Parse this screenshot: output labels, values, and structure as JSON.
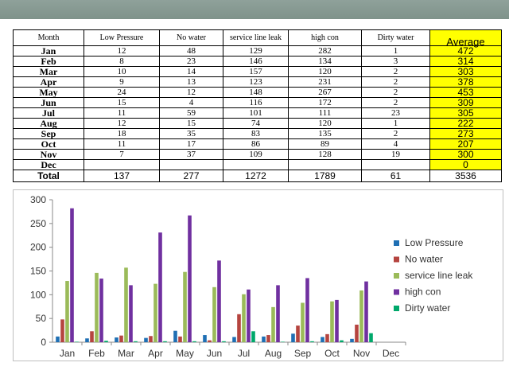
{
  "table": {
    "headers": [
      "Month",
      "Low Pressure",
      "No water",
      "service line leak",
      "high con",
      "Dirty water",
      "Average"
    ],
    "rows": [
      {
        "month": "Jan",
        "cells": [
          "12",
          "48",
          "129",
          "282",
          "1",
          "472"
        ]
      },
      {
        "month": "Feb",
        "cells": [
          "8",
          "23",
          "146",
          "134",
          "3",
          "314"
        ]
      },
      {
        "month": "Mar",
        "cells": [
          "10",
          "14",
          "157",
          "120",
          "2",
          "303"
        ]
      },
      {
        "month": "Apr",
        "cells": [
          "9",
          "13",
          "123",
          "231",
          "2",
          "378"
        ]
      },
      {
        "month": "May",
        "cells": [
          "24",
          "12",
          "148",
          "267",
          "2",
          "453"
        ]
      },
      {
        "month": "Jun",
        "cells": [
          "15",
          "4",
          "116",
          "172",
          "2",
          "309"
        ]
      },
      {
        "month": "Jul",
        "cells": [
          "11",
          "59",
          "101",
          "111",
          "23",
          "305"
        ]
      },
      {
        "month": "Aug",
        "cells": [
          "12",
          "15",
          "74",
          "120",
          "1",
          "222"
        ]
      },
      {
        "month": "Sep",
        "cells": [
          "18",
          "35",
          "83",
          "135",
          "2",
          "273"
        ]
      },
      {
        "month": "Oct",
        "cells": [
          "11",
          "17",
          "86",
          "89",
          "4",
          "207"
        ]
      },
      {
        "month": "Nov",
        "cells": [
          "7",
          "37",
          "109",
          "128",
          "19",
          "300"
        ]
      },
      {
        "month": "Dec",
        "cells": [
          "",
          "",
          "",
          "",
          "",
          "0"
        ]
      }
    ],
    "total": {
      "label": "Total",
      "cells": [
        "137",
        "277",
        "1272",
        "1789",
        "61",
        "3536"
      ]
    }
  },
  "chart_data": {
    "type": "bar",
    "categories": [
      "Jan",
      "Feb",
      "Mar",
      "Apr",
      "May",
      "Jun",
      "Jul",
      "Aug",
      "Sep",
      "Oct",
      "Nov",
      "Dec"
    ],
    "series": [
      {
        "name": "Low Pressure",
        "color": "#1f6fb4",
        "values": [
          12,
          8,
          10,
          9,
          24,
          15,
          11,
          12,
          18,
          11,
          7,
          0
        ]
      },
      {
        "name": "No water",
        "color": "#b5443f",
        "values": [
          48,
          23,
          14,
          13,
          12,
          4,
          59,
          15,
          35,
          17,
          37,
          0
        ]
      },
      {
        "name": "service line leak",
        "color": "#9bbb59",
        "values": [
          129,
          146,
          157,
          123,
          148,
          116,
          101,
          74,
          83,
          86,
          109,
          0
        ]
      },
      {
        "name": "high con",
        "color": "#7030a0",
        "values": [
          282,
          134,
          120,
          231,
          267,
          172,
          111,
          120,
          135,
          89,
          128,
          0
        ]
      },
      {
        "name": "Dirty water",
        "color": "#00a86b",
        "values": [
          1,
          3,
          2,
          2,
          2,
          2,
          23,
          1,
          2,
          4,
          19,
          0
        ]
      }
    ],
    "yticks": [
      0,
      50,
      100,
      150,
      200,
      250,
      300
    ],
    "ylim": [
      0,
      300
    ],
    "grid": false,
    "legend": "right"
  }
}
